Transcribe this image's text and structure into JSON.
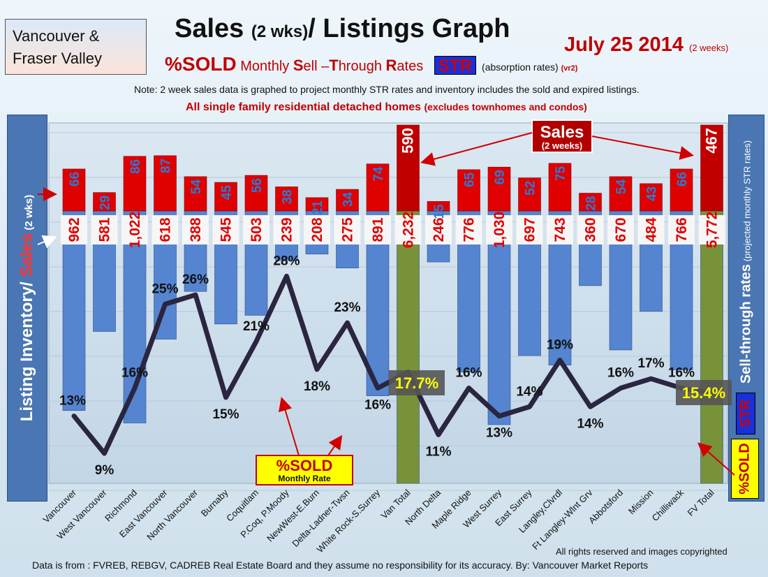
{
  "header": {
    "region_line1": "Vancouver &",
    "region_line2": "Fraser Valley",
    "title_main": "Sales ",
    "title_paren": "(2 wks)",
    "title_rest": "/ Listings Graph",
    "date": "July 25 2014",
    "date_note": "(2 weeks)",
    "subtitle_sold": "%SOLD",
    "subtitle_pre": " Monthly ",
    "subtitle_s": "S",
    "subtitle_ell": "ell –",
    "subtitle_t": "T",
    "subtitle_hrough": "hrough ",
    "subtitle_r": "R",
    "subtitle_ates": "ates",
    "str_badge": "STR",
    "str_note": "(absorption rates)",
    "str_version": "(vr2)",
    "note": "Note: 2 week sales data is graphed to project monthly STR rates and inventory includes the sold and expired listings.",
    "scope": "All single family residential detached homes",
    "scope_paren": "(excludes townhomes and condos)"
  },
  "side_labels": {
    "left_inventory": "Listing Inventory/ ",
    "left_sales": "Sales",
    "left_paren": " (2 wks)",
    "right_main": "Sell-through rates",
    "right_paren": " (projected monthly STR rates)",
    "str_vertical": "STR",
    "sold_vertical": "%SOLD"
  },
  "annotations": {
    "sales_callout": "Sales",
    "sales_callout_sub": "(2 weeks)",
    "sold_callout": "%SOLD",
    "sold_callout_sub": "Monthly Rate",
    "van_total_pct": "17.7%",
    "fv_total_pct": "15.4%"
  },
  "footer": {
    "rights": "All rights reserved and  images copyrighted",
    "source": "Data is from : FVREB, REBGV, CADREB Real Estate Board and they assume no responsibility for its accuracy. By: Vancouver Market Reports"
  },
  "colors": {
    "sales_bar": "#e00000",
    "inventory_bar": "#5585d0",
    "total_bar": "#78923a",
    "str_line_high": "#ee1111",
    "str_line_low": "#2a2540"
  },
  "chart_data": {
    "type": "bar",
    "categories": [
      "Vancouver",
      "West Vancouver",
      "Richmond",
      "East Vancouver",
      "North Vancouver",
      "Burnaby",
      "Coquitlam",
      "P.Coq, P.Moody",
      "NewWest-E.Burn",
      "Delta-Ladner-Twsn",
      "White Rock-S.Surrey",
      "Van Total",
      "North Delta",
      "Maple Ridge",
      "West Surrey",
      "East Surrey",
      "Langley,Clvrdl",
      "Ft Langley-Wlnt Grv",
      "Abbotsford",
      "Mission",
      "Chilliwack",
      "FV Total"
    ],
    "series": [
      {
        "name": "Sales",
        "values": [
          66,
          29,
          86,
          87,
          54,
          45,
          56,
          38,
          21,
          34,
          74,
          590,
          15,
          65,
          69,
          52,
          75,
          28,
          54,
          43,
          66,
          467
        ]
      },
      {
        "name": "Listing Inventory",
        "values": [
          962,
          581,
          1022,
          618,
          388,
          545,
          503,
          239,
          208,
          275,
          891,
          6232,
          246,
          776,
          1030,
          697,
          743,
          360,
          670,
          484,
          766,
          5772
        ]
      },
      {
        "name": "%SOLD",
        "values": [
          13,
          9,
          16,
          25,
          26,
          15,
          21,
          28,
          18,
          23,
          16,
          17.7,
          11,
          16,
          13,
          14,
          19,
          14,
          16,
          17,
          16,
          15.4
        ]
      }
    ],
    "value_labels": {
      "sales": [
        "66",
        "29",
        "86",
        "87",
        "54",
        "45",
        "56",
        "38",
        "21",
        "34",
        "74",
        "590",
        "15",
        "65",
        "69",
        "52",
        "75",
        "28",
        "54",
        "43",
        "66",
        "467"
      ],
      "inventory": [
        "962",
        "581",
        "1,022",
        "618",
        "388",
        "545",
        "503",
        "239",
        "208",
        "275",
        "891",
        "6,232",
        "246",
        "776",
        "1,030",
        "697",
        "743",
        "360",
        "670",
        "484",
        "766",
        "5,772"
      ],
      "str": [
        "13%",
        "9%",
        "16%",
        "25%",
        "26%",
        "15%",
        "21%",
        "28%",
        "18%",
        "23%",
        "16%",
        "",
        "11%",
        "16%",
        "13%",
        "14%",
        "19%",
        "14%",
        "16%",
        "17%",
        "16%",
        ""
      ]
    },
    "total_indices": [
      11,
      21
    ]
  }
}
